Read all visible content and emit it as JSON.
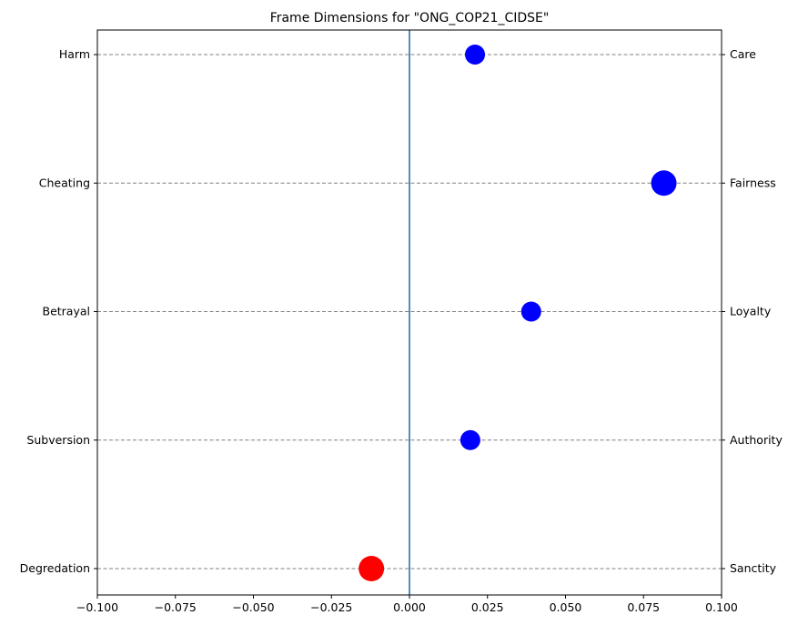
{
  "chart_data": {
    "type": "scatter",
    "title": "Frame Dimensions for \"ONG_COP21_CIDSE\"",
    "xlabel": "",
    "ylabel": "",
    "xlim": [
      -0.1,
      0.1
    ],
    "xticks": [
      -0.1,
      -0.075,
      -0.05,
      -0.025,
      0.0,
      0.025,
      0.05,
      0.075,
      0.1
    ],
    "xtick_labels": [
      "−0.100",
      "−0.075",
      "−0.050",
      "−0.025",
      "0.000",
      "0.025",
      "0.050",
      "0.075",
      "0.100"
    ],
    "grid": "horizontal dashed",
    "vline_x": 0.0,
    "colors": {
      "positive": "#0000ff",
      "negative": "#ff0000",
      "vline": "#1f77b4",
      "grid": "#808080"
    },
    "dimensions": [
      {
        "left": "Harm",
        "right": "Care",
        "value": 0.021,
        "size": "small"
      },
      {
        "left": "Cheating",
        "right": "Fairness",
        "value": 0.0815,
        "size": "large"
      },
      {
        "left": "Betrayal",
        "right": "Loyalty",
        "value": 0.039,
        "size": "small"
      },
      {
        "left": "Subversion",
        "right": "Authority",
        "value": 0.0195,
        "size": "small"
      },
      {
        "left": "Degredation",
        "right": "Sanctity",
        "value": -0.0122,
        "size": "large"
      }
    ]
  }
}
